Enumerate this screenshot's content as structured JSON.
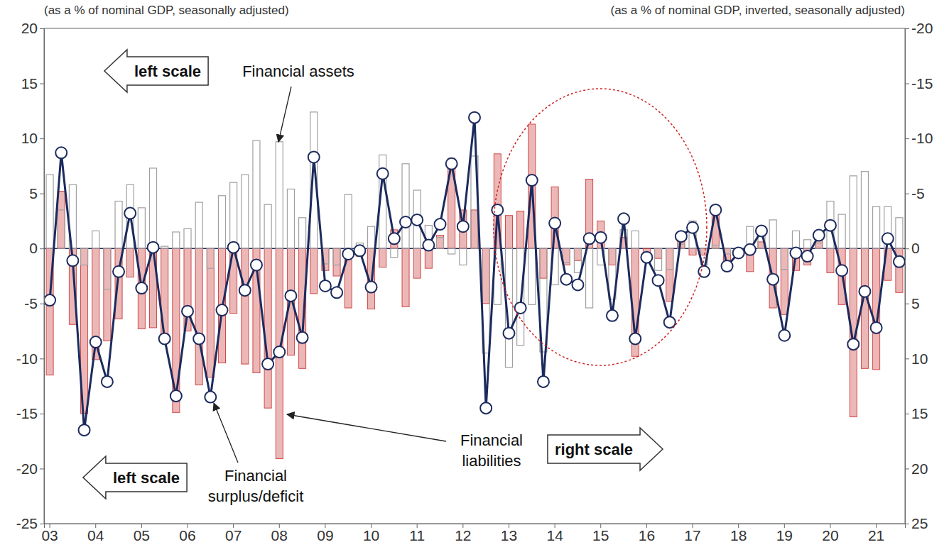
{
  "chart_data": {
    "type": "bar",
    "categories": [
      "03",
      null,
      null,
      null,
      "04",
      null,
      null,
      null,
      "05",
      null,
      null,
      null,
      "06",
      null,
      null,
      null,
      "07",
      null,
      null,
      null,
      "08",
      null,
      null,
      null,
      "09",
      null,
      null,
      null,
      "10",
      null,
      null,
      null,
      "11",
      null,
      null,
      null,
      "12",
      null,
      null,
      null,
      "13",
      null,
      null,
      null,
      "14",
      null,
      null,
      null,
      "15",
      null,
      null,
      null,
      "16",
      null,
      null,
      null,
      "17",
      null,
      null,
      null,
      "18",
      null,
      null,
      null,
      "19",
      null,
      null,
      null,
      "20",
      null,
      null,
      null,
      "21",
      null,
      null
    ],
    "series": [
      {
        "name": "Financial assets",
        "type": "bar",
        "color": "#a0a0a0",
        "values": [
          6.7,
          3.5,
          5.8,
          -1.5,
          1.6,
          -3.7,
          4.3,
          5.8,
          3.7,
          7.3,
          0.2,
          1.5,
          1.8,
          4.2,
          -1.8,
          4.8,
          6.0,
          6.7,
          9.8,
          4.0,
          9.7,
          5.4,
          2.8,
          12.4,
          -1.4,
          -1.5,
          4.9,
          0.5,
          2.0,
          8.5,
          -0.8,
          7.7,
          5.3,
          2.1,
          1.0,
          -0.5,
          -1.5,
          8.4,
          -9.5,
          -5.1,
          -10.8,
          -8.8,
          -5.1,
          -9.4,
          -3.3,
          -1.3,
          -2.2,
          -5.4,
          -1.5,
          -4.6,
          1.7,
          1.6,
          0.0,
          -2.0,
          -1.9,
          0.4,
          2.5,
          -1.5,
          0.3,
          -0.5,
          -0.2,
          2.0,
          2.0,
          2.6,
          -1.9,
          1.6,
          0.8,
          0.5,
          4.3,
          3.1,
          6.6,
          7.0,
          3.8,
          3.8,
          2.8
        ]
      },
      {
        "name": "Financial liabilities",
        "type": "bar",
        "axis": "y2",
        "color": "#d04a4a",
        "values": [
          11.5,
          -5.2,
          6.9,
          15.0,
          10.1,
          8.4,
          6.4,
          2.6,
          7.3,
          7.2,
          8.4,
          14.9,
          7.5,
          12.4,
          11.7,
          10.4,
          5.9,
          10.5,
          11.3,
          14.5,
          19.1,
          9.7,
          10.9,
          4.1,
          2.0,
          2.5,
          5.4,
          0.7,
          5.5,
          1.7,
          -1.7,
          5.3,
          2.7,
          1.8,
          -1.2,
          -8.2,
          -3.5,
          -3.5,
          5.0,
          -8.6,
          -3.0,
          -3.4,
          -11.3,
          2.7,
          -5.6,
          1.5,
          1.1,
          -6.3,
          -2.5,
          1.5,
          -1.0,
          9.8,
          0.8,
          0.9,
          4.8,
          -0.7,
          0.6,
          0.6,
          -3.2,
          1.1,
          0.2,
          2.1,
          -0.6,
          5.4,
          6.0,
          2.0,
          1.5,
          -0.7,
          2.2,
          5.1,
          15.3,
          10.9,
          11.0,
          2.9,
          4.0
        ]
      },
      {
        "name": "Financial surplus/deficit",
        "type": "line",
        "color": "#1c2b5e",
        "marker": "circle",
        "values": [
          -4.7,
          8.7,
          -1.1,
          -16.5,
          -8.5,
          -12.1,
          -2.1,
          3.2,
          -3.6,
          0.1,
          -8.2,
          -13.4,
          -5.7,
          -8.2,
          -13.5,
          -5.6,
          0.1,
          -3.8,
          -1.5,
          -10.5,
          -9.4,
          -4.3,
          -8.1,
          8.3,
          -3.4,
          -4.0,
          -0.5,
          -0.2,
          -3.5,
          6.8,
          0.9,
          2.4,
          2.6,
          0.3,
          2.2,
          7.7,
          2.0,
          11.9,
          -14.5,
          3.5,
          -7.7,
          -5.4,
          6.2,
          -12.1,
          2.3,
          -2.8,
          -3.3,
          0.9,
          1.0,
          -6.1,
          2.7,
          -8.2,
          -0.8,
          -2.9,
          -6.7,
          1.1,
          1.9,
          -2.1,
          3.5,
          -1.6,
          -0.4,
          -0.1,
          1.6,
          -2.8,
          -7.9,
          -0.4,
          -0.7,
          1.2,
          2.1,
          -2.0,
          -8.7,
          -3.9,
          -7.2,
          0.9,
          -1.2
        ]
      }
    ],
    "ylim": [
      -25,
      20
    ],
    "yticks": [
      -25,
      -20,
      -15,
      -10,
      -5,
      0,
      5,
      10,
      15,
      20
    ],
    "y2lim": [
      25,
      -20
    ],
    "y2ticks": [
      25,
      20,
      15,
      10,
      5,
      0,
      -5,
      -10,
      -15,
      -20
    ],
    "annotations": [
      {
        "text": "(as a % of nominal GDP, seasonally adjusted)"
      },
      {
        "text": "(as a % of nominal GDP, inverted, seasonally adjusted)"
      },
      {
        "text": "left scale"
      },
      {
        "text": "left scale"
      },
      {
        "text": "right scale"
      }
    ]
  }
}
